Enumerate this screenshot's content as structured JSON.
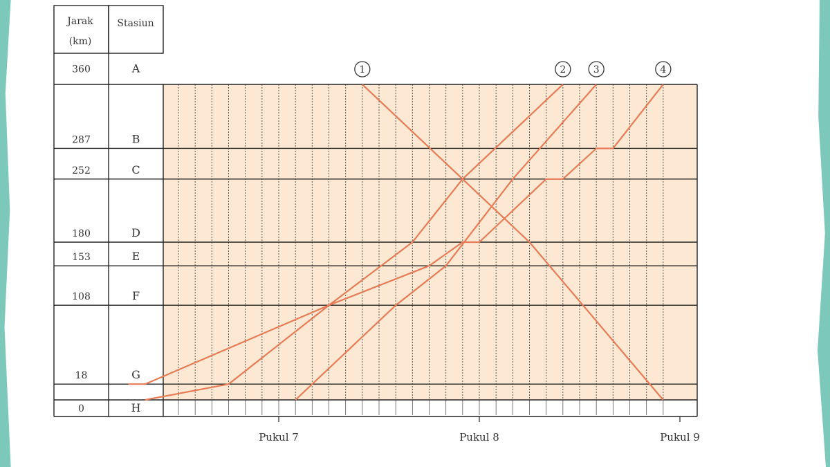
{
  "colors": {
    "plot_background": "#fde9d3",
    "train_line": "#e67b55",
    "grid": "#222222",
    "accent_edges": "#7cc8bb"
  },
  "table": {
    "header_distance_line1": "Jarak",
    "header_distance_line2": "(km)",
    "header_station": "Stasiun"
  },
  "chart_data": {
    "type": "line",
    "x_axis": {
      "ticks": [
        {
          "label": "Pukul 7",
          "time": "07:00"
        },
        {
          "label": "Pukul 8",
          "time": "08:00"
        },
        {
          "label": "Pukul 9",
          "time": "09:00"
        }
      ],
      "range": [
        "06:15",
        "08:56"
      ],
      "minor_interval_minutes": 5,
      "grid": true
    },
    "y_axis": {
      "range": [
        0,
        360
      ],
      "grid": true
    },
    "stations": [
      {
        "name": "A",
        "km": 360
      },
      {
        "name": "B",
        "km": 287
      },
      {
        "name": "C",
        "km": 252
      },
      {
        "name": "D",
        "km": 180
      },
      {
        "name": "E",
        "km": 153
      },
      {
        "name": "F",
        "km": 108
      },
      {
        "name": "G",
        "km": 18
      },
      {
        "name": "H",
        "km": 0
      }
    ],
    "series": [
      {
        "name": "1",
        "points": [
          [
            "07:25",
            360
          ],
          [
            "07:55",
            252
          ],
          [
            "08:15",
            180
          ],
          [
            "08:55",
            0
          ]
        ]
      },
      {
        "name": "2",
        "points": [
          [
            "06:20",
            0
          ],
          [
            "06:45",
            18
          ],
          [
            "07:15",
            108
          ],
          [
            "07:40",
            180
          ],
          [
            "07:55",
            252
          ],
          [
            "08:25",
            360
          ]
        ]
      },
      {
        "name": "3",
        "points": [
          [
            "07:05",
            0
          ],
          [
            "07:35",
            108
          ],
          [
            "07:50",
            153
          ],
          [
            "08:10",
            252
          ],
          [
            "08:35",
            360
          ]
        ]
      },
      {
        "name": "4",
        "points": [
          [
            "06:15",
            18
          ],
          [
            "06:20",
            18
          ],
          [
            "07:15",
            108
          ],
          [
            "07:45",
            153
          ],
          [
            "07:55",
            180
          ],
          [
            "08:00",
            180
          ],
          [
            "08:20",
            252
          ],
          [
            "08:25",
            252
          ],
          [
            "08:35",
            287
          ],
          [
            "08:40",
            287
          ],
          [
            "08:55",
            360
          ]
        ]
      }
    ]
  }
}
